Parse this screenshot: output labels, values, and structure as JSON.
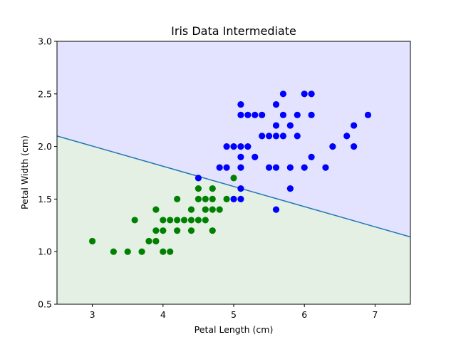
{
  "chart_data": {
    "type": "scatter",
    "title": "Iris Data Intermediate",
    "xlabel": "Petal Length (cm)",
    "ylabel": "Petal Width (cm)",
    "xlim": [
      2.5,
      7.5
    ],
    "ylim": [
      0.5,
      3.0
    ],
    "xticks": [
      3,
      4,
      5,
      6,
      7
    ],
    "yticks": [
      0.5,
      1.0,
      1.5,
      2.0,
      2.5,
      3.0
    ],
    "xtick_labels": [
      "3",
      "4",
      "5",
      "6",
      "7"
    ],
    "ytick_labels": [
      "0.5",
      "1.0",
      "1.5",
      "2.0",
      "2.5",
      "3.0"
    ],
    "grid": false,
    "legend": "none",
    "colors": {
      "upper_region": "#e3e3ff",
      "lower_region": "#e3f0e3",
      "boundary": "#1f77b4",
      "class_a": "#0000ff",
      "class_b": "#008000"
    },
    "decision_boundary": {
      "x": [
        2.5,
        7.5
      ],
      "y": [
        2.1,
        1.14
      ]
    },
    "series": [
      {
        "color": "blue",
        "points": [
          [
            4.5,
            1.7
          ],
          [
            5.0,
            1.5
          ],
          [
            5.1,
            1.5
          ],
          [
            5.1,
            1.6
          ],
          [
            5.6,
            1.4
          ],
          [
            5.8,
            1.6
          ],
          [
            4.8,
            1.8
          ],
          [
            4.9,
            1.8
          ],
          [
            5.1,
            1.8
          ],
          [
            5.5,
            1.8
          ],
          [
            5.6,
            1.8
          ],
          [
            5.8,
            1.8
          ],
          [
            6.0,
            1.8
          ],
          [
            6.3,
            1.8
          ],
          [
            5.1,
            1.9
          ],
          [
            5.3,
            1.9
          ],
          [
            6.1,
            1.9
          ],
          [
            4.9,
            2.0
          ],
          [
            5.0,
            2.0
          ],
          [
            5.1,
            2.0
          ],
          [
            5.2,
            2.0
          ],
          [
            6.4,
            2.0
          ],
          [
            6.7,
            2.0
          ],
          [
            5.4,
            2.1
          ],
          [
            5.5,
            2.1
          ],
          [
            5.6,
            2.1
          ],
          [
            5.7,
            2.1
          ],
          [
            5.9,
            2.1
          ],
          [
            6.6,
            2.1
          ],
          [
            5.6,
            2.2
          ],
          [
            5.8,
            2.2
          ],
          [
            6.7,
            2.2
          ],
          [
            5.1,
            2.3
          ],
          [
            5.2,
            2.3
          ],
          [
            5.3,
            2.3
          ],
          [
            5.4,
            2.3
          ],
          [
            5.7,
            2.3
          ],
          [
            5.9,
            2.3
          ],
          [
            6.1,
            2.3
          ],
          [
            6.9,
            2.3
          ],
          [
            5.1,
            2.4
          ],
          [
            5.6,
            2.4
          ],
          [
            5.7,
            2.5
          ],
          [
            6.0,
            2.5
          ],
          [
            6.1,
            2.5
          ]
        ]
      },
      {
        "color": "green",
        "points": [
          [
            3.0,
            1.1
          ],
          [
            3.3,
            1.0
          ],
          [
            3.5,
            1.0
          ],
          [
            3.7,
            1.0
          ],
          [
            4.0,
            1.0
          ],
          [
            4.1,
            1.0
          ],
          [
            3.8,
            1.1
          ],
          [
            3.9,
            1.1
          ],
          [
            3.9,
            1.2
          ],
          [
            4.0,
            1.2
          ],
          [
            4.2,
            1.2
          ],
          [
            4.4,
            1.2
          ],
          [
            4.7,
            1.2
          ],
          [
            3.6,
            1.3
          ],
          [
            4.0,
            1.3
          ],
          [
            4.1,
            1.3
          ],
          [
            4.2,
            1.3
          ],
          [
            4.3,
            1.3
          ],
          [
            4.4,
            1.3
          ],
          [
            4.5,
            1.3
          ],
          [
            4.6,
            1.3
          ],
          [
            3.9,
            1.4
          ],
          [
            4.4,
            1.4
          ],
          [
            4.6,
            1.4
          ],
          [
            4.7,
            1.4
          ],
          [
            4.8,
            1.4
          ],
          [
            4.2,
            1.5
          ],
          [
            4.5,
            1.5
          ],
          [
            4.6,
            1.5
          ],
          [
            4.7,
            1.5
          ],
          [
            4.9,
            1.5
          ],
          [
            4.5,
            1.6
          ],
          [
            4.7,
            1.6
          ],
          [
            5.0,
            1.7
          ]
        ]
      }
    ]
  }
}
